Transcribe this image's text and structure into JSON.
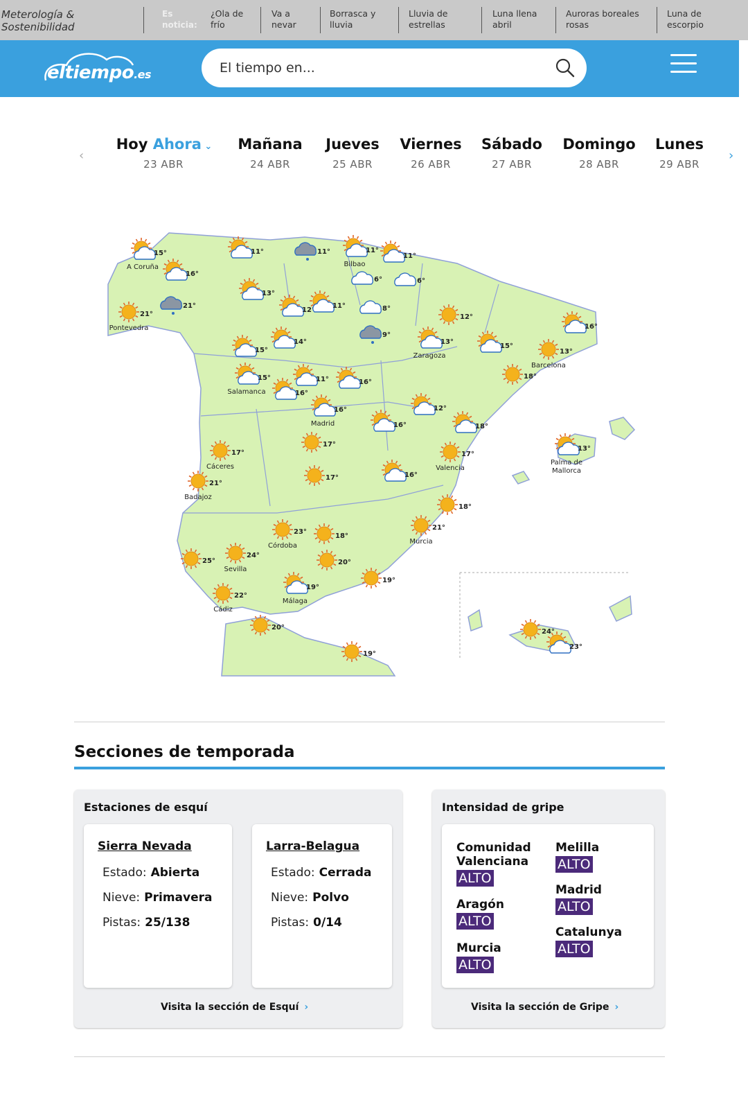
{
  "topbar": {
    "site_title": "Meterología & Sostenibilidad",
    "news_label": "Es noticia:",
    "news": [
      "¿Ola de frío",
      "Va a nevar",
      "Borrasca y lluvia",
      "Lluvia de estrellas",
      "Luna llena abril",
      "Auroras boreales rosas",
      "Luna de escorpio"
    ]
  },
  "header": {
    "logo_main": "eltiempo",
    "logo_suffix": ".es",
    "search_placeholder": "El tiempo en...",
    "search_icon": "search-icon",
    "menu_icon": "hamburger-menu-icon"
  },
  "days": [
    {
      "name": "Hoy",
      "extra": "Ahora",
      "date": "23 ABR"
    },
    {
      "name": "Mañana",
      "date": "24 ABR"
    },
    {
      "name": "Jueves",
      "date": "25 ABR"
    },
    {
      "name": "Viernes",
      "date": "26 ABR"
    },
    {
      "name": "Sábado",
      "date": "27 ABR"
    },
    {
      "name": "Domingo",
      "date": "28 ABR"
    },
    {
      "name": "Lunes",
      "date": "29 ABR"
    }
  ],
  "map": {
    "colors": {
      "land": "#d8f2b4",
      "border": "#8fa0d8",
      "sun": "#f4b21c",
      "cloud": "#ffffff",
      "storm": "#8b96a3"
    },
    "cities": [
      {
        "name": "A Coruña",
        "temp": "15°",
        "icon": "sun-cloud"
      },
      {
        "name": "",
        "temp": "16°",
        "icon": "sun-cloud"
      },
      {
        "name": "Pontevedra",
        "temp": "21°",
        "icon": "sun"
      },
      {
        "name": "",
        "temp": "21°",
        "icon": "rain"
      },
      {
        "name": "",
        "temp": "11°",
        "icon": "sun-cloud"
      },
      {
        "name": "",
        "temp": "11°",
        "icon": "rain"
      },
      {
        "name": "Bilbao",
        "temp": "11°",
        "icon": "sun-cloud"
      },
      {
        "name": "",
        "temp": "11°",
        "icon": "sun-cloud"
      },
      {
        "name": "",
        "temp": "13°",
        "icon": "sun-cloud"
      },
      {
        "name": "",
        "temp": "6°",
        "icon": "cloud"
      },
      {
        "name": "",
        "temp": "6°",
        "icon": "cloud"
      },
      {
        "name": "",
        "temp": "12°",
        "icon": "sun-cloud"
      },
      {
        "name": "",
        "temp": "11°",
        "icon": "sun-cloud"
      },
      {
        "name": "",
        "temp": "8°",
        "icon": "cloud"
      },
      {
        "name": "",
        "temp": "9°",
        "icon": "rain"
      },
      {
        "name": "",
        "temp": "12°",
        "icon": "sun"
      },
      {
        "name": "",
        "temp": "16°",
        "icon": "sun-cloud"
      },
      {
        "name": "Zaragoza",
        "temp": "13°",
        "icon": "sun-cloud"
      },
      {
        "name": "",
        "temp": "15°",
        "icon": "sun-cloud"
      },
      {
        "name": "Barcelona",
        "temp": "13°",
        "icon": "sun"
      },
      {
        "name": "",
        "temp": "18°",
        "icon": "sun"
      },
      {
        "name": "",
        "temp": "15°",
        "icon": "sun-cloud"
      },
      {
        "name": "",
        "temp": "14°",
        "icon": "sun-cloud"
      },
      {
        "name": "Salamanca",
        "temp": "15°",
        "icon": "sun-cloud"
      },
      {
        "name": "",
        "temp": "16°",
        "icon": "sun-cloud"
      },
      {
        "name": "",
        "temp": "11°",
        "icon": "sun-cloud"
      },
      {
        "name": "",
        "temp": "16°",
        "icon": "sun-cloud"
      },
      {
        "name": "Madrid",
        "temp": "16°",
        "icon": "sun-cloud"
      },
      {
        "name": "",
        "temp": "12°",
        "icon": "sun-cloud"
      },
      {
        "name": "",
        "temp": "16°",
        "icon": "sun-cloud"
      },
      {
        "name": "",
        "temp": "18°",
        "icon": "sun-cloud"
      },
      {
        "name": "",
        "temp": "17°",
        "icon": "sun"
      },
      {
        "name": "Cáceres",
        "temp": "17°",
        "icon": "sun"
      },
      {
        "name": "Badajoz",
        "temp": "21°",
        "icon": "sun"
      },
      {
        "name": "",
        "temp": "17°",
        "icon": "sun"
      },
      {
        "name": "",
        "temp": "16°",
        "icon": "sun-cloud"
      },
      {
        "name": "Valencia",
        "temp": "17°",
        "icon": "sun"
      },
      {
        "name": "Palma de Mallorca",
        "temp": "13°",
        "icon": "sun-cloud"
      },
      {
        "name": "",
        "temp": "18°",
        "icon": "sun"
      },
      {
        "name": "Murcia",
        "temp": "21°",
        "icon": "sun"
      },
      {
        "name": "Córdoba",
        "temp": "23°",
        "icon": "sun"
      },
      {
        "name": "",
        "temp": "18°",
        "icon": "sun"
      },
      {
        "name": "Sevilla",
        "temp": "24°",
        "icon": "sun"
      },
      {
        "name": "",
        "temp": "25°",
        "icon": "sun"
      },
      {
        "name": "",
        "temp": "20°",
        "icon": "sun"
      },
      {
        "name": "Málaga",
        "temp": "19°",
        "icon": "sun-cloud"
      },
      {
        "name": "",
        "temp": "19°",
        "icon": "sun"
      },
      {
        "name": "Cádiz",
        "temp": "22°",
        "icon": "sun"
      },
      {
        "name": "",
        "temp": "20°",
        "icon": "sun"
      },
      {
        "name": "",
        "temp": "19°",
        "icon": "sun"
      },
      {
        "name": "",
        "temp": "24°",
        "icon": "sun"
      },
      {
        "name": "",
        "temp": "23°",
        "icon": "sun-cloud"
      }
    ]
  },
  "seasonal": {
    "title": "Secciones de temporada",
    "ski": {
      "title": "Estaciones de esquí",
      "state_label": "Estado:",
      "snow_label": "Nieve:",
      "runs_label": "Pistas:",
      "stations": [
        {
          "name": "Sierra Nevada",
          "state": "Abierta",
          "snow": "Primavera",
          "runs": "25/138"
        },
        {
          "name": "Larra-Belagua",
          "state": "Cerrada",
          "snow": "Polvo",
          "runs": "0/14"
        }
      ],
      "link": "Visita la sección de Esquí"
    },
    "flu": {
      "title": "Intensidad de gripe",
      "regions": [
        {
          "name": "Comunidad Valenciana",
          "level": "ALTO"
        },
        {
          "name": "Aragón",
          "level": "ALTO"
        },
        {
          "name": "Murcia",
          "level": "ALTO"
        },
        {
          "name": "Melilla",
          "level": "ALTO"
        },
        {
          "name": "Madrid",
          "level": "ALTO"
        },
        {
          "name": "Catalunya",
          "level": "ALTO"
        }
      ],
      "badge_color": "#4b2a7a",
      "link": "Visita la sección de Gripe"
    }
  }
}
